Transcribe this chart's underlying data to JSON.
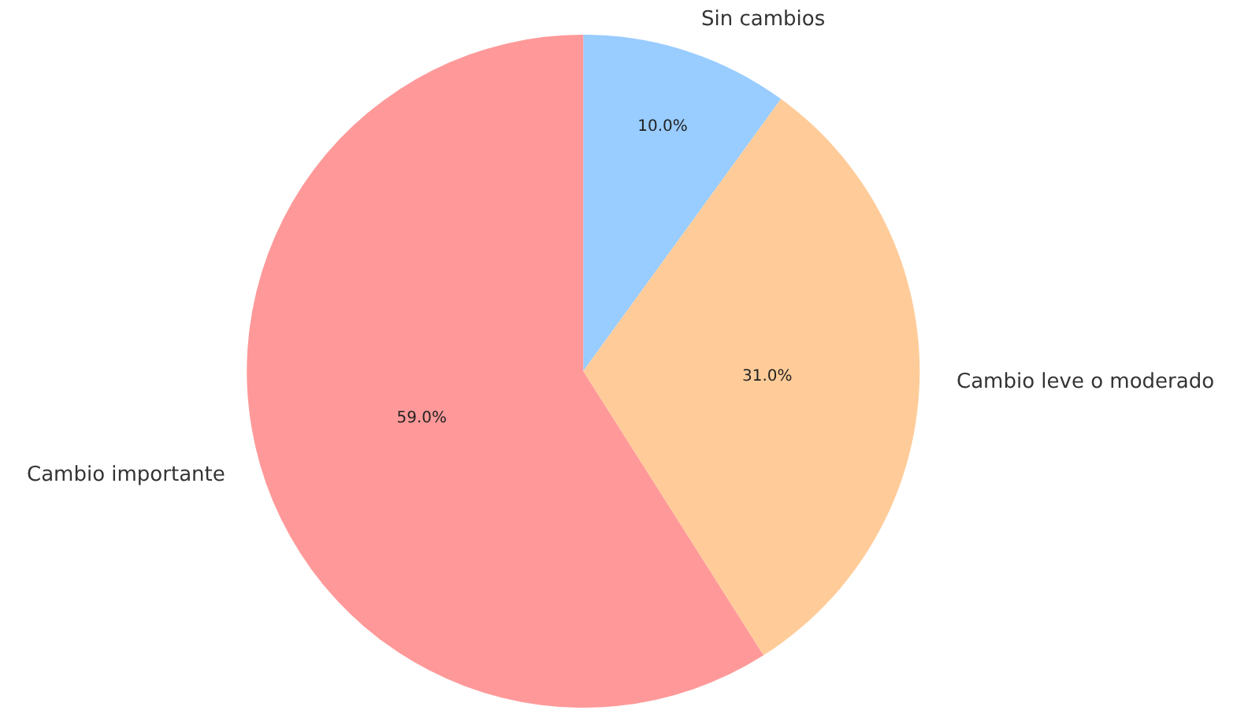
{
  "chart_data": {
    "type": "pie",
    "categories": [
      "Sin cambios",
      "Cambio leve o moderado",
      "Cambio importante"
    ],
    "values": [
      10,
      31,
      59
    ],
    "colors": [
      "#99ccff",
      "#ffcc99",
      "#ff9999"
    ],
    "value_labels": [
      "10.0%",
      "31.0%",
      "59.0%"
    ],
    "legend": false
  }
}
